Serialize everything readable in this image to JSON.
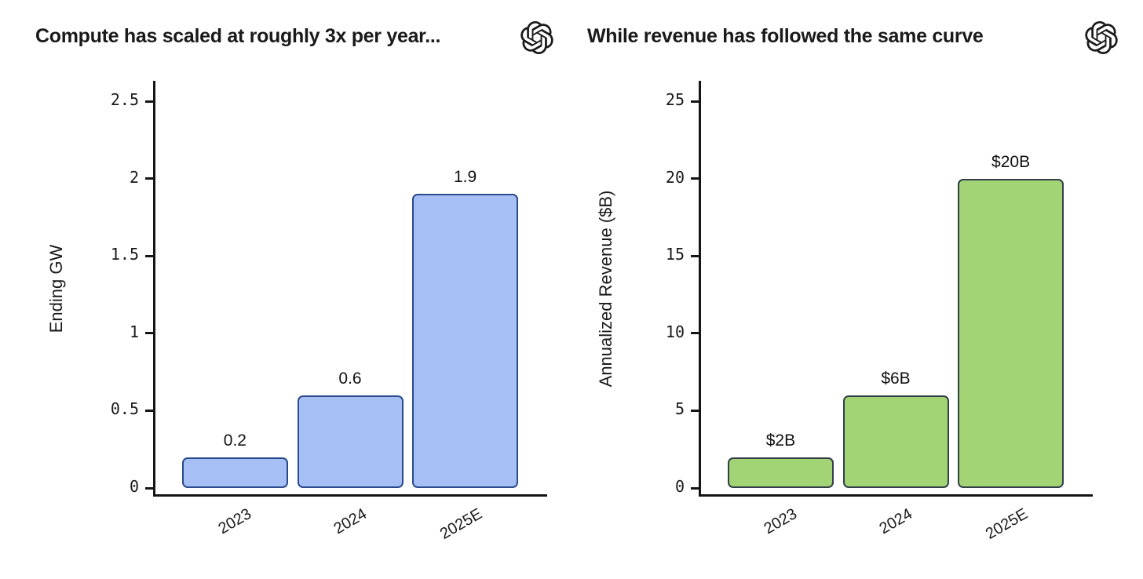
{
  "colors": {
    "background": "#ffffff",
    "axis": "#151515",
    "text": "#1a1a1a",
    "blue_fill": "#a6c0f5",
    "blue_stroke": "#2b4a8c",
    "green_fill": "#a2d475",
    "green_stroke": "#333e49"
  },
  "chart_data": [
    {
      "type": "bar",
      "title": "Compute has scaled at roughly 3x per year...",
      "logo_icon": "openai-logo",
      "categories": [
        "2023",
        "2024",
        "2025E"
      ],
      "values": [
        0.2,
        0.6,
        1.9
      ],
      "bar_labels": [
        "0.2",
        "0.6",
        "1.9"
      ],
      "xlabel": "",
      "ylabel": "Ending GW",
      "ylim": [
        0,
        2.5
      ],
      "yticks": [
        0,
        0.5,
        1,
        1.5,
        2,
        2.5
      ],
      "ytick_labels": [
        "0",
        "0.5",
        "1",
        "1.5",
        "2",
        "2.5"
      ],
      "grid": false,
      "legend": false,
      "bar_fill": "#a6c0f5",
      "bar_stroke": "#2b4a8c"
    },
    {
      "type": "bar",
      "title": "While revenue has followed the same curve",
      "logo_icon": "openai-logo",
      "categories": [
        "2023",
        "2024",
        "2025E"
      ],
      "values": [
        2,
        6,
        20
      ],
      "bar_labels": [
        "$2B",
        "$6B",
        "$20B"
      ],
      "xlabel": "",
      "ylabel": "Annualized Revenue ($B)",
      "ylim": [
        0,
        25
      ],
      "yticks": [
        0,
        5,
        10,
        15,
        20,
        25
      ],
      "ytick_labels": [
        "0",
        "5",
        "10",
        "15",
        "20",
        "25"
      ],
      "grid": false,
      "legend": false,
      "bar_fill": "#a2d475",
      "bar_stroke": "#333e49"
    }
  ]
}
